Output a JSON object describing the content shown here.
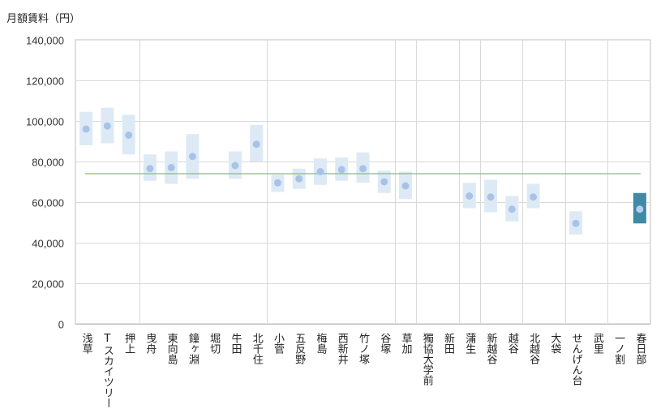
{
  "chart_data": {
    "type": "range-dot",
    "ylabel": "月額賃料（円）",
    "ylim": [
      0,
      140000
    ],
    "ytick_step": 20000,
    "ytick_labels": [
      "0",
      "20,000",
      "40,000",
      "60,000",
      "80,000",
      "100,000",
      "120,000",
      "140,000"
    ],
    "reference_line": 74000,
    "highlight_category": "春日部",
    "group_separators_after": [
      "押上",
      "北千住",
      "谷塚",
      "草加",
      "新田",
      "蒲生",
      "越谷",
      "大袋",
      "武里"
    ],
    "categories": [
      "浅草",
      "Tスカイツリー",
      "押上",
      "曳舟",
      "東向島",
      "鐘ヶ淵",
      "堀切",
      "牛田",
      "北千住",
      "小菅",
      "五反野",
      "梅島",
      "西新井",
      "竹ノ塚",
      "谷塚",
      "草加",
      "獨協大学前",
      "新田",
      "蒲生",
      "新越谷",
      "越谷",
      "北越谷",
      "大袋",
      "せんげん台",
      "武里",
      "一ノ割",
      "春日部"
    ],
    "series": [
      {
        "name": "平均",
        "values": [
          96000,
          97500,
          93000,
          76500,
          77000,
          82500,
          null,
          78000,
          88500,
          69500,
          71500,
          75000,
          76000,
          76500,
          70000,
          68000,
          null,
          null,
          63000,
          62500,
          56500,
          62500,
          null,
          49500,
          null,
          null,
          56500
        ]
      },
      {
        "name": "上限",
        "values": [
          104500,
          106500,
          103000,
          83500,
          85000,
          93500,
          null,
          85000,
          98000,
          73500,
          76500,
          81500,
          82000,
          84500,
          75500,
          75000,
          null,
          null,
          69500,
          71000,
          63000,
          69000,
          null,
          55500,
          null,
          null,
          64500
        ]
      },
      {
        "name": "下限",
        "values": [
          88000,
          89000,
          83500,
          70500,
          69000,
          71500,
          null,
          71500,
          80000,
          65000,
          66500,
          68500,
          70500,
          69500,
          64500,
          61500,
          null,
          null,
          57000,
          55000,
          50500,
          57000,
          null,
          44000,
          null,
          null,
          49500
        ]
      }
    ],
    "colors": {
      "range_fill": "#ddeaf6",
      "point": "#a9c3e6",
      "highlight_fill": "#3f8aa6",
      "highlight_point": "#b7cdeb",
      "reference_line": "#8cc15a",
      "grid": "#d9d9d9",
      "axis": "#bfbfbf"
    }
  }
}
